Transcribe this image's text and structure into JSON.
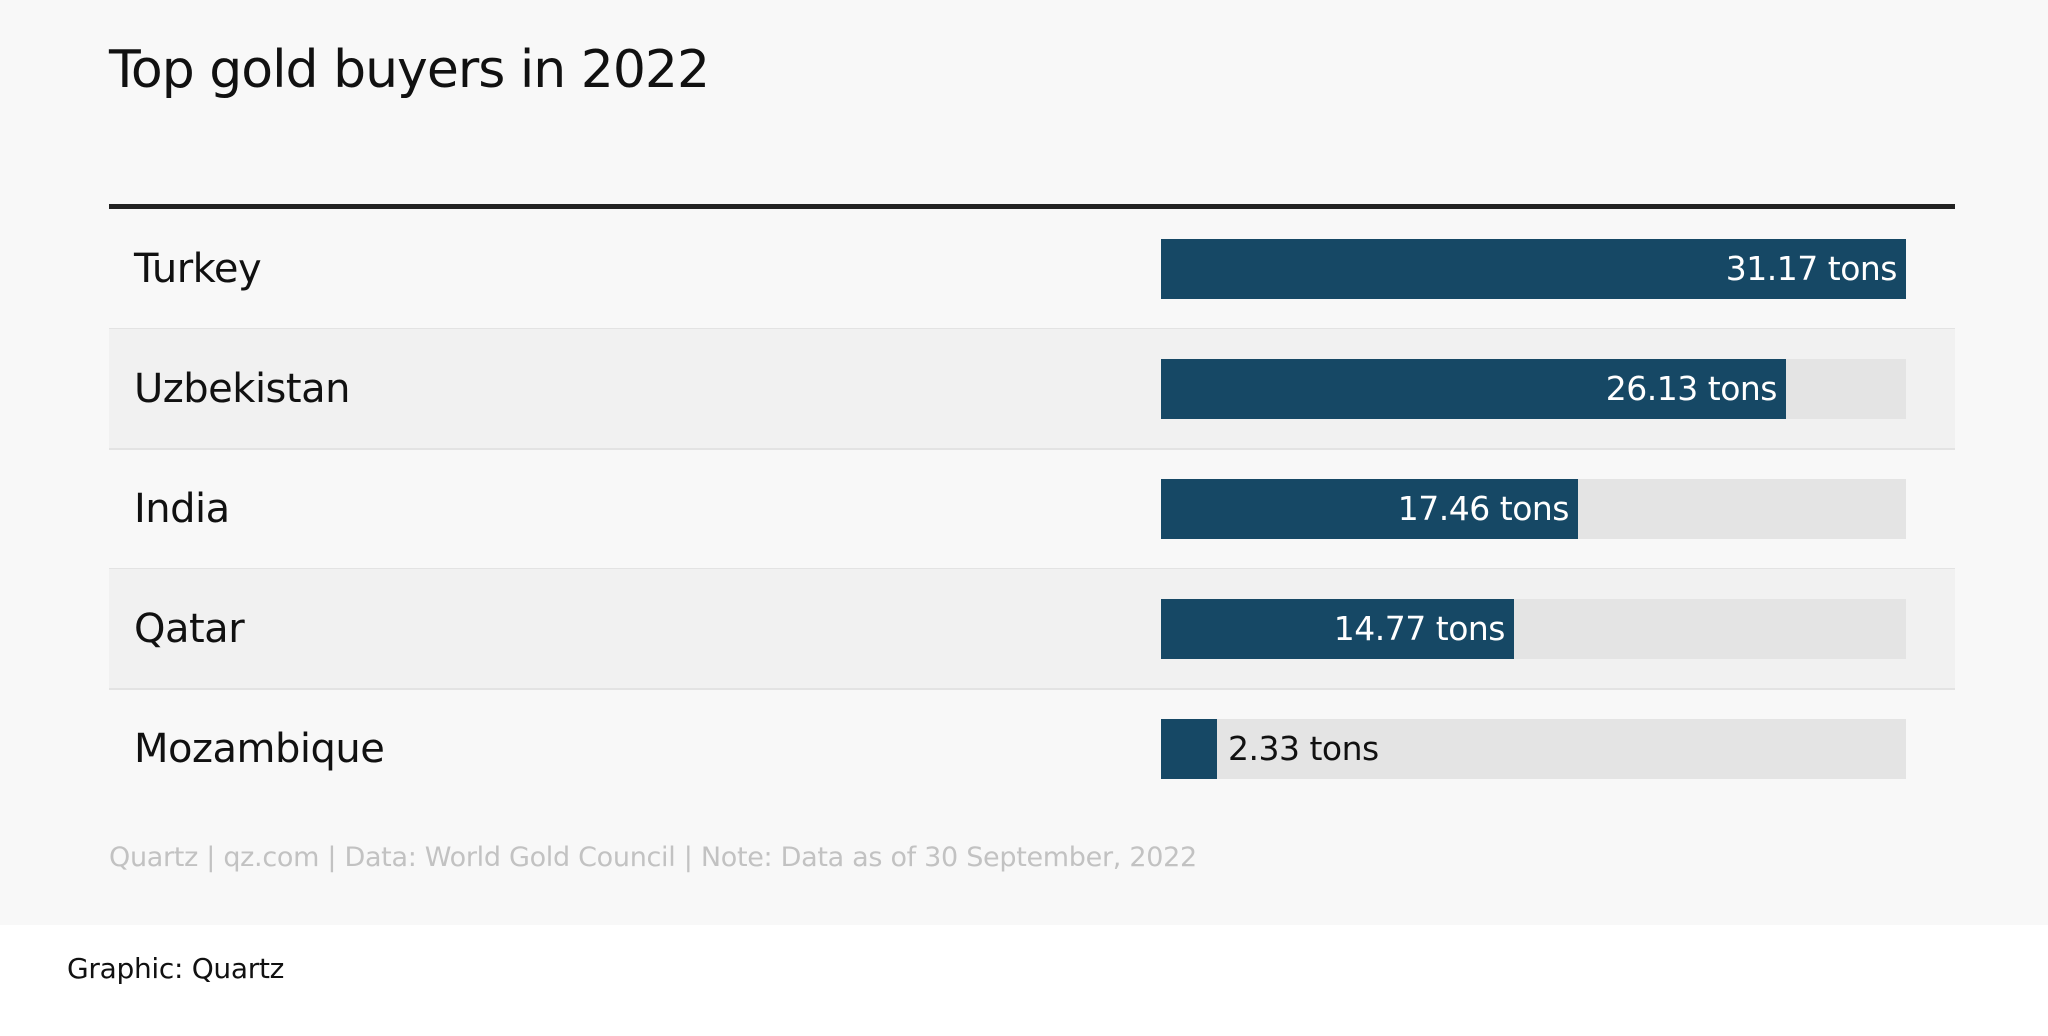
{
  "chart_data": {
    "type": "bar",
    "orientation": "horizontal",
    "title": "Top gold buyers in 2022",
    "categories": [
      "Turkey",
      "Uzbekistan",
      "India",
      "Qatar",
      "Mozambique"
    ],
    "values": [
      31.17,
      26.13,
      17.46,
      14.77,
      2.33
    ],
    "value_labels": [
      "31.17 tons",
      "26.13 tons",
      "17.46 tons",
      "14.77 tons",
      "2.33 tons"
    ],
    "xlim": [
      0,
      31.17
    ],
    "grid": false,
    "legend": "none"
  },
  "colors": {
    "bar": "#164865",
    "track": "#e4e4e4",
    "background": "#f8f8f8"
  },
  "footnote": "Quartz | qz.com | Data: World Gold Council | Note: Data as of 30 September, 2022",
  "credit": "Graphic: Quartz"
}
